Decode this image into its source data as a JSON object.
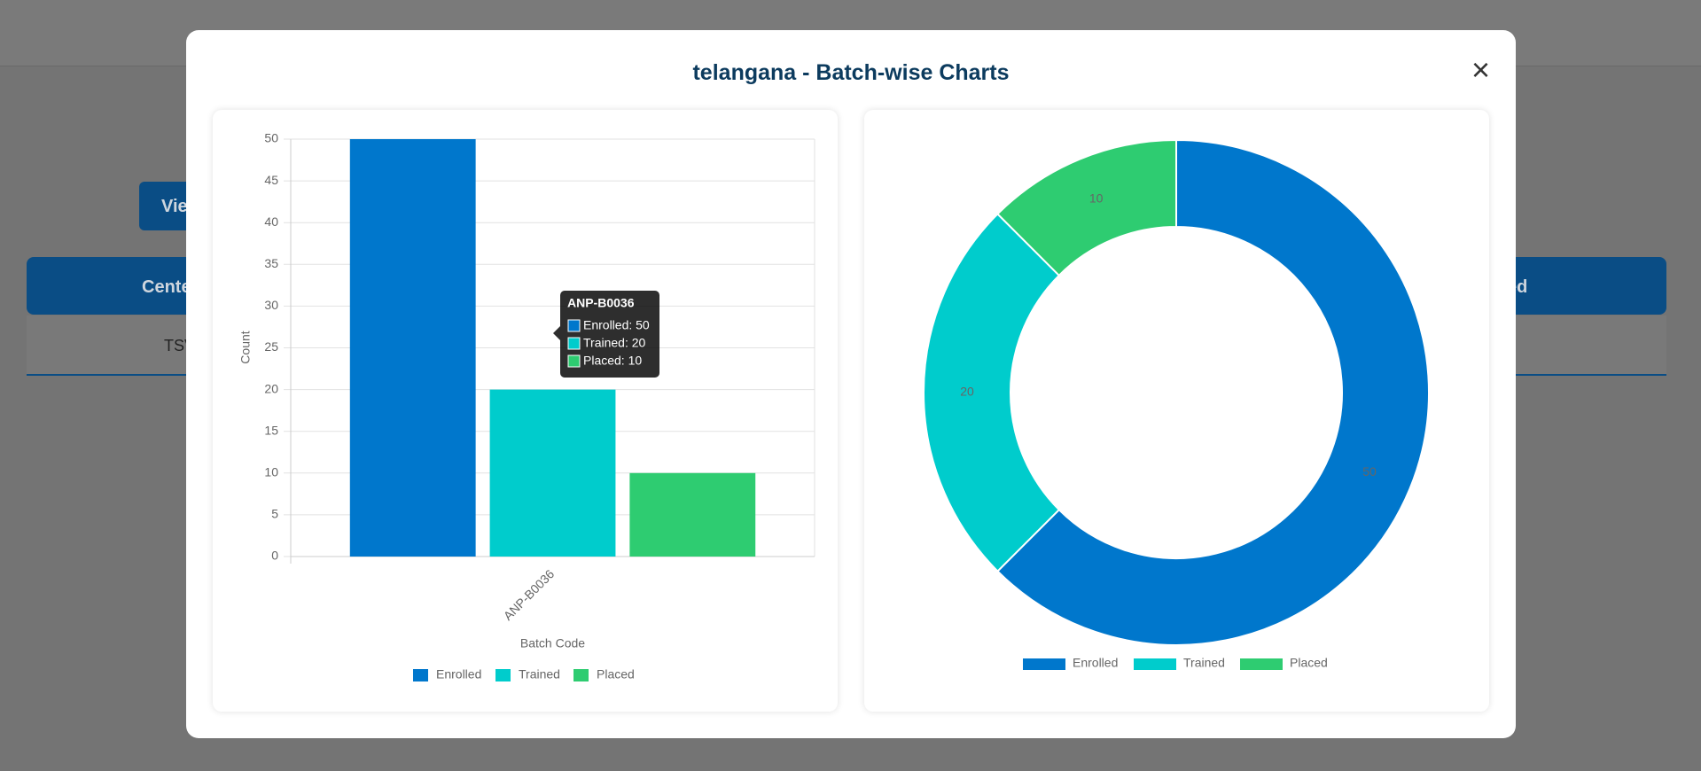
{
  "background": {
    "buttons": [
      "Vie",
      "Cente",
      "TSV",
      "ed"
    ]
  },
  "modal": {
    "title": "telangana - Batch-wise Charts",
    "close": "×"
  },
  "chart_data": [
    {
      "type": "bar",
      "categories": [
        "ANP-B0036"
      ],
      "series": [
        {
          "name": "Enrolled",
          "color": "#0077cc",
          "values": [
            50
          ]
        },
        {
          "name": "Trained",
          "color": "#00cccc",
          "values": [
            20
          ]
        },
        {
          "name": "Placed",
          "color": "#2ecc71",
          "values": [
            10
          ]
        }
      ],
      "ylim": [
        0,
        50
      ],
      "yticks": [
        0,
        5,
        10,
        15,
        20,
        25,
        30,
        35,
        40,
        45,
        50
      ],
      "xlabel": "Batch Code",
      "ylabel": "Count",
      "grid": true,
      "legend": "bottom",
      "tooltip": {
        "title": "ANP-B0036",
        "items": [
          "Enrolled: 50",
          "Trained: 20",
          "Placed: 10"
        ]
      }
    },
    {
      "type": "doughnut",
      "categories": [
        "Enrolled",
        "Trained",
        "Placed"
      ],
      "values": [
        50,
        20,
        10
      ],
      "colors": [
        "#0077cc",
        "#00cccc",
        "#2ecc71"
      ],
      "legend": "bottom"
    }
  ]
}
